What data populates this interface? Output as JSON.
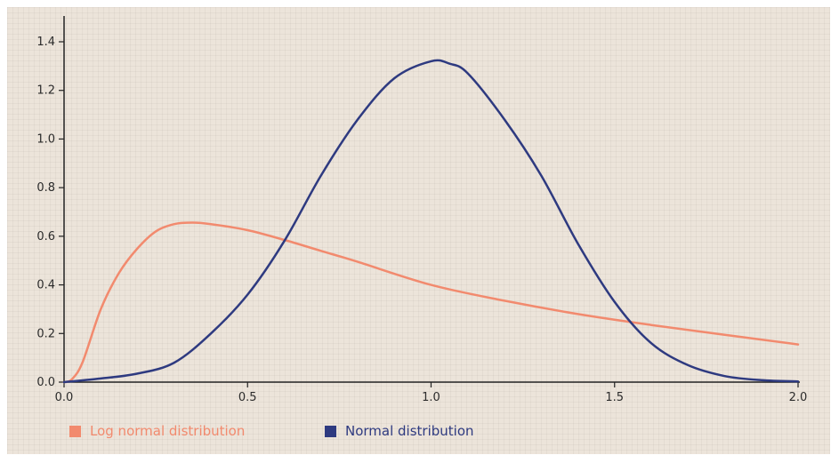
{
  "chart_data": {
    "type": "line",
    "title": "",
    "xlabel": "",
    "ylabel": "",
    "xlim": [
      0,
      2.0
    ],
    "ylim": [
      0,
      1.4
    ],
    "x_ticks": [
      "0.0",
      "0.5",
      "1.0",
      "1.5",
      "2.0"
    ],
    "y_ticks": [
      "0.0",
      "0.2",
      "0.4",
      "0.6",
      "0.8",
      "1.0",
      "1.2",
      "1.4"
    ],
    "grid": false,
    "legend_position": "bottom-left",
    "series": [
      {
        "name": "Log normal distribution",
        "color": "#f28a6e",
        "x": [
          0.0,
          0.02,
          0.05,
          0.1,
          0.15,
          0.2,
          0.25,
          0.3,
          0.35,
          0.4,
          0.5,
          0.6,
          0.7,
          0.8,
          1.0,
          1.2,
          1.4,
          1.6,
          1.8,
          2.0
        ],
        "y": [
          0.0,
          0.01,
          0.08,
          0.3,
          0.45,
          0.55,
          0.62,
          0.65,
          0.656,
          0.65,
          0.625,
          0.585,
          0.54,
          0.495,
          0.4,
          0.335,
          0.28,
          0.235,
          0.195,
          0.155
        ]
      },
      {
        "name": "Normal distribution",
        "color": "#2e3a80",
        "x": [
          0.0,
          0.1,
          0.2,
          0.3,
          0.4,
          0.5,
          0.6,
          0.7,
          0.8,
          0.9,
          1.0,
          1.05,
          1.1,
          1.2,
          1.3,
          1.4,
          1.5,
          1.6,
          1.7,
          1.8,
          1.9,
          2.0
        ],
        "y": [
          0.0,
          0.015,
          0.035,
          0.08,
          0.2,
          0.36,
          0.58,
          0.85,
          1.08,
          1.25,
          1.32,
          1.31,
          1.27,
          1.08,
          0.85,
          0.57,
          0.33,
          0.16,
          0.07,
          0.025,
          0.008,
          0.003
        ]
      }
    ]
  }
}
